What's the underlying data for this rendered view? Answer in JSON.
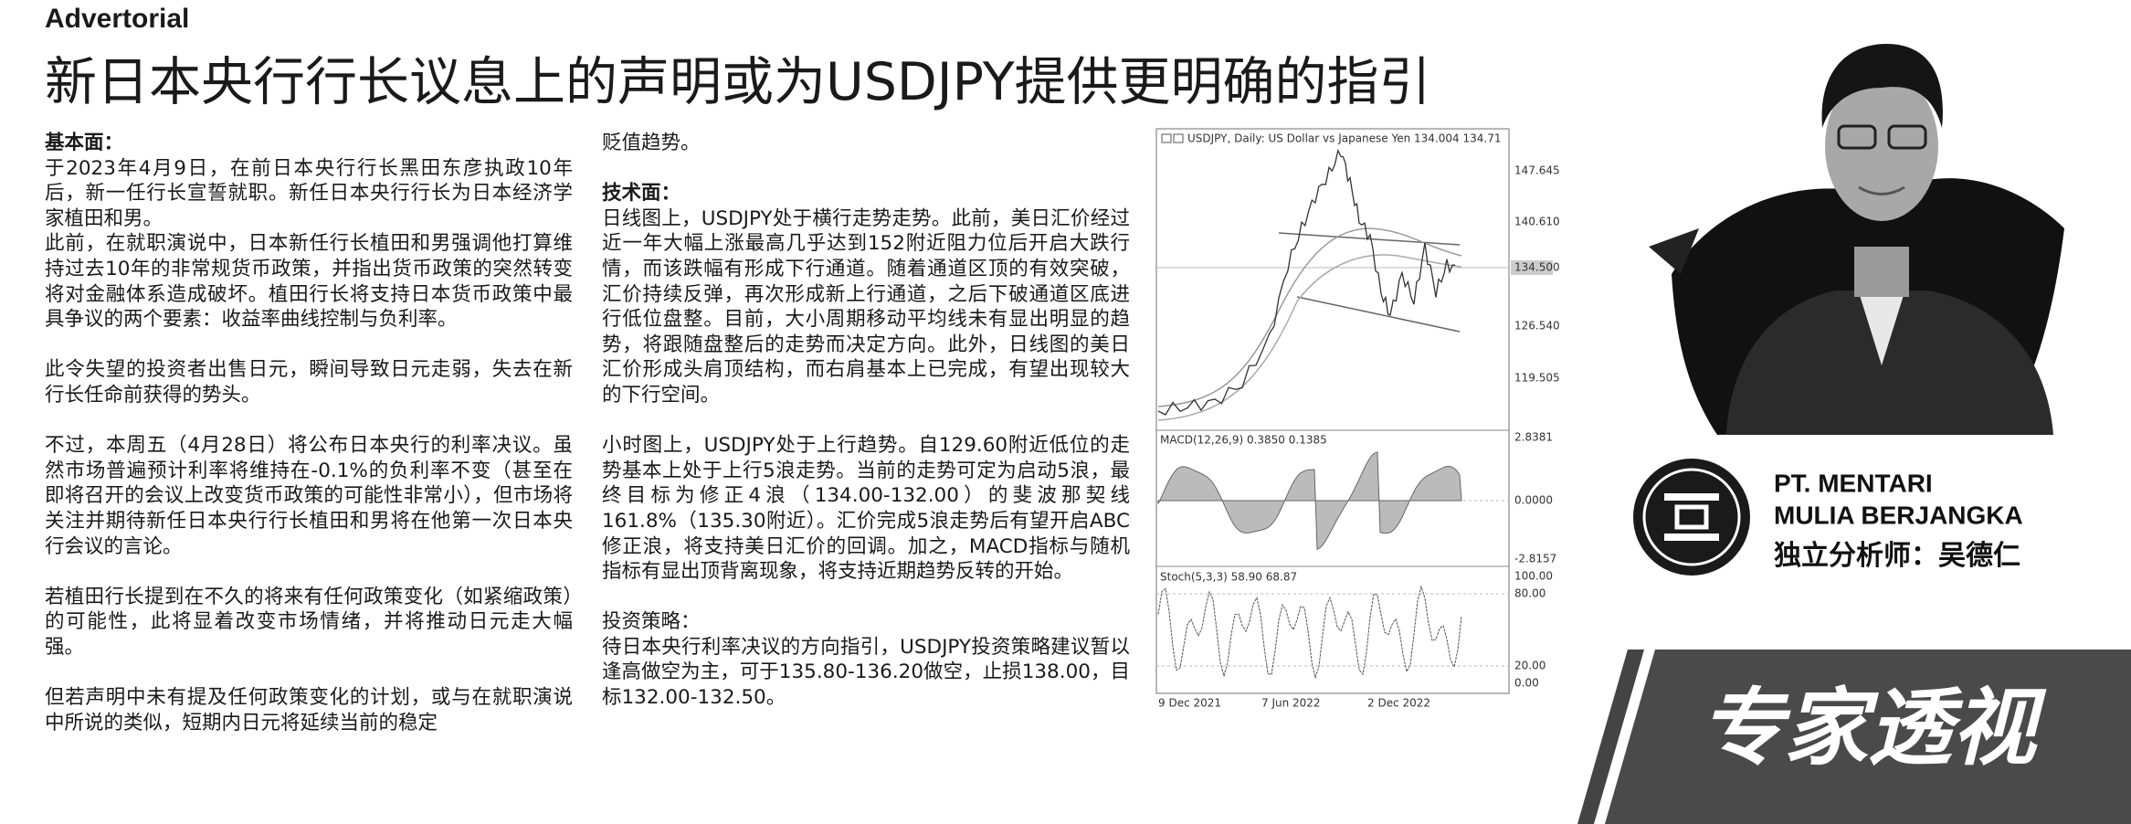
{
  "header": {
    "label": "Advertorial",
    "title": "新日本央行行长议息上的声明或为USDJPY提供更明确的指引"
  },
  "column_1": [
    {
      "heading": "基本面：",
      "paragraphs": [
        "于2023年4月9日，在前日本央行行长黑田东彦执政10年后，新一任行长宣誓就职。新任日本央行行长为日本经济学家植田和男。",
        "此前，在就职演说中，日本新任行长植田和男强调他打算维持过去10年的非常规货币政策，并指出货币政策的突然转变将对金融体系造成破坏。植田行长将支持日本货币政策中最具争议的两个要素：收益率曲线控制与负利率。"
      ]
    },
    {
      "paragraphs": [
        "此令失望的投资者出售日元，瞬间导致日元走弱，失去在新行长任命前获得的势头。"
      ]
    },
    {
      "paragraphs": [
        "不过，本周五（4月28日）将公布日本央行的利率决议。虽然市场普遍预计利率将维持在-0.1%的负利率不变（甚至在即将召开的会议上改变货币政策的可能性非常小），但市场将关注并期待新任日本央行行长植田和男将在他第一次日本央行会议的言论。"
      ]
    },
    {
      "paragraphs": [
        "若植田行长提到在不久的将来有任何政策变化（如紧缩政策）的可能性，此将显着改变市场情绪，并将推动日元走大幅强。"
      ]
    },
    {
      "paragraphs": [
        "但若声明中未有提及任何政策变化的计划，或与在就职演说中所说的类似，短期内日元将延续当前的稳定"
      ]
    }
  ],
  "column_2": [
    {
      "paragraphs": [
        "贬值趋势。"
      ]
    },
    {
      "heading": "技术面：",
      "paragraphs": [
        "日线图上，USDJPY处于横行走势走势。此前，美日汇价经过近一年大幅上涨最高几乎达到152附近阻力位后开启大跌行情，而该跌幅有形成下行通道。随着通道区顶的有效突破，汇价持续反弹，再次形成新上行通道，之后下破通道区底进行低位盘整。目前，大小周期移动平均线未有显出明显的趋势，将跟随盘整后的走势而决定方向。此外，日线图的美日汇价形成头肩顶结构，而右肩基本上已完成，有望出现较大的下行空间。"
      ]
    },
    {
      "paragraphs": [
        "小时图上，USDJPY处于上行趋势。自129.60附近低位的走势基本上处于上行5浪走势。当前的走势可定为启动5浪，最终目标为修正4浪（134.00-132.00）的斐波那契线161.8%（135.30附近）。汇价完成5浪走势后有望开启ABC修正浪，将支持美日汇价的回调。加之，MACD指标与随机指标有显出顶背离现象，将支持近期趋势反转的开始。"
      ]
    },
    {
      "subheading": "投资策略：",
      "paragraphs": [
        "待日本央行利率决议的方向指引，USDJPY投资策略建议暂以逢高做空为主，可于135.80-136.20做空，止损138.00，目标132.00-132.50。"
      ]
    }
  ],
  "chart_image": {
    "title": "USDJPY, Daily: US Dollar vs Japanese Yen 134.004 134.71",
    "price_ticks": [
      "147.645",
      "140.610",
      "134.500",
      "126.540",
      "119.505"
    ],
    "macd_label": "MACD(12,26,9) 0.3850 0.1385",
    "macd_ticks": [
      "2.8381",
      "0.0000",
      "-2.8157"
    ],
    "stoch_label": "Stoch(5,3,3) 58.90 68.87",
    "stoch_ticks": [
      "100.00",
      "80.00",
      "20.00",
      "0.00"
    ],
    "dates": [
      "9 Dec 2021",
      "7 Jun 2022",
      "2 Dec 2022"
    ]
  },
  "sponsor": {
    "company_line_1": "PT. MENTARI",
    "company_line_2": "MULIA BERJANGKA",
    "analyst": "独立分析师：吴德仁",
    "banner": "专家透视"
  }
}
